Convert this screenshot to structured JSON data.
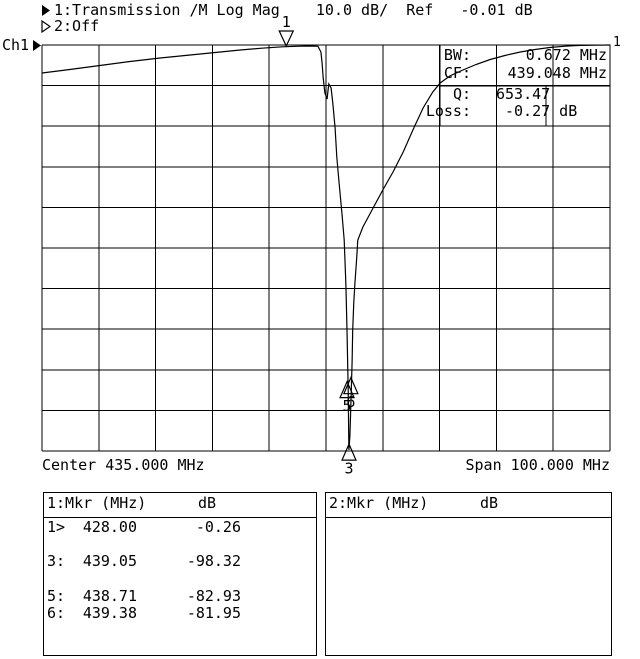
{
  "header": {
    "trace1_label": "1:Transmission /M Log Mag    10.0 dB/  Ref   -0.01 dB",
    "trace2_label": "2:Off",
    "channel": "Ch1",
    "ref_marker_label": "1"
  },
  "readout": {
    "bw_label": "BW:",
    "bw_value": "0.672 MHz",
    "cf_label": "CF:",
    "cf_value": "439.048 MHz",
    "q_label": "Q:",
    "q_value": "653.47",
    "loss_label": "Loss:",
    "loss_value": "-0.27 dB"
  },
  "x_axis": {
    "center_label": "Center 435.000 MHz",
    "span_label": "Span 100.000 MHz"
  },
  "marker_tables": [
    {
      "title": "1:Mkr (MHz)",
      "unit": "dB",
      "rows": [
        {
          "label": "1>",
          "freq": "428.00",
          "db": "-0.26"
        },
        {
          "label": "",
          "freq": "",
          "db": ""
        },
        {
          "label": "3:",
          "freq": "439.05",
          "db": "-98.32"
        },
        {
          "label": "",
          "freq": "",
          "db": ""
        },
        {
          "label": "5:",
          "freq": "438.71",
          "db": "-82.93"
        },
        {
          "label": "6:",
          "freq": "439.38",
          "db": "-81.95"
        }
      ]
    },
    {
      "title": "2:Mkr (MHz)",
      "unit": "dB",
      "rows": []
    }
  ],
  "chart_data": {
    "type": "line",
    "title": "Ch1 Transmission /M Log Mag",
    "x_axis": {
      "center_mhz": 435.0,
      "span_mhz": 100.0,
      "start_mhz": 385.0,
      "stop_mhz": 485.0
    },
    "y_axis": {
      "ref_db": -0.01,
      "scale_db_per_div": 10.0,
      "divisions": 10
    },
    "grid": {
      "cols": 10,
      "rows": 10
    },
    "bandwidth_readout": {
      "bw_mhz": 0.672,
      "cf_mhz": 439.048,
      "q": 653.47,
      "loss_db": -0.27
    },
    "markers": [
      {
        "id": "1",
        "freq_mhz": 428.0,
        "db": -0.26,
        "flag": "down",
        "active": true
      },
      {
        "id": "3",
        "freq_mhz": 439.05,
        "db": -98.32,
        "flag": "up"
      },
      {
        "id": "5",
        "freq_mhz": 438.71,
        "db": -82.93,
        "flag": "up"
      },
      {
        "id": "6",
        "freq_mhz": 439.38,
        "db": -81.95,
        "flag": "up"
      }
    ],
    "series": [
      {
        "name": "Ch1 Transmission /M",
        "points": [
          [
            385.0,
            -6.91
          ],
          [
            389.9,
            -6.04
          ],
          [
            395.2,
            -5.06
          ],
          [
            400.5,
            -4.07
          ],
          [
            405.8,
            -3.21
          ],
          [
            411.1,
            -2.47
          ],
          [
            415.5,
            -1.86
          ],
          [
            419.9,
            -1.24
          ],
          [
            423.7,
            -0.8
          ],
          [
            427.3,
            -0.45
          ],
          [
            430.4,
            -0.31
          ],
          [
            432.5,
            -0.26
          ],
          [
            433.6,
            -0.33
          ],
          [
            434.1,
            -1.73
          ],
          [
            434.3,
            -4.2
          ],
          [
            434.5,
            -8.14
          ],
          [
            434.8,
            -11.83
          ],
          [
            435.2,
            -13.31
          ],
          [
            435.4,
            -10.6
          ],
          [
            435.5,
            -9.61
          ],
          [
            435.9,
            -10.6
          ],
          [
            436.2,
            -14.29
          ],
          [
            436.6,
            -20.45
          ],
          [
            436.9,
            -27.59
          ],
          [
            437.3,
            -33.99
          ],
          [
            437.8,
            -41.38
          ],
          [
            438.2,
            -48.03
          ],
          [
            438.5,
            -59.12
          ],
          [
            438.7,
            -70.2
          ],
          [
            438.9,
            -84.98
          ],
          [
            439.0,
            -96.06
          ],
          [
            439.04,
            -99.75
          ],
          [
            439.2,
            -96.31
          ],
          [
            439.4,
            -87.44
          ],
          [
            439.6,
            -78.08
          ],
          [
            439.7,
            -70.2
          ],
          [
            439.9,
            -63.3
          ],
          [
            440.1,
            -58.38
          ],
          [
            440.4,
            -52.47
          ],
          [
            440.6,
            -48.03
          ],
          [
            441.5,
            -44.83
          ],
          [
            443.3,
            -40.15
          ],
          [
            445.0,
            -35.72
          ],
          [
            446.8,
            -31.28
          ],
          [
            448.6,
            -26.36
          ],
          [
            450.3,
            -20.94
          ],
          [
            452.1,
            -15.52
          ],
          [
            453.8,
            -11.58
          ],
          [
            455.1,
            -9.37
          ],
          [
            456.8,
            -7.65
          ],
          [
            459.1,
            -6.17
          ],
          [
            461.4,
            -4.81
          ],
          [
            463.9,
            -3.58
          ],
          [
            466.5,
            -2.6
          ],
          [
            469.2,
            -1.73
          ],
          [
            471.8,
            -1.12
          ],
          [
            474.4,
            -0.63
          ],
          [
            477.1,
            -0.31
          ],
          [
            479.7,
            -0.11
          ],
          [
            482.4,
            -0.05
          ],
          [
            485.0,
            -0.02
          ]
        ]
      }
    ]
  }
}
